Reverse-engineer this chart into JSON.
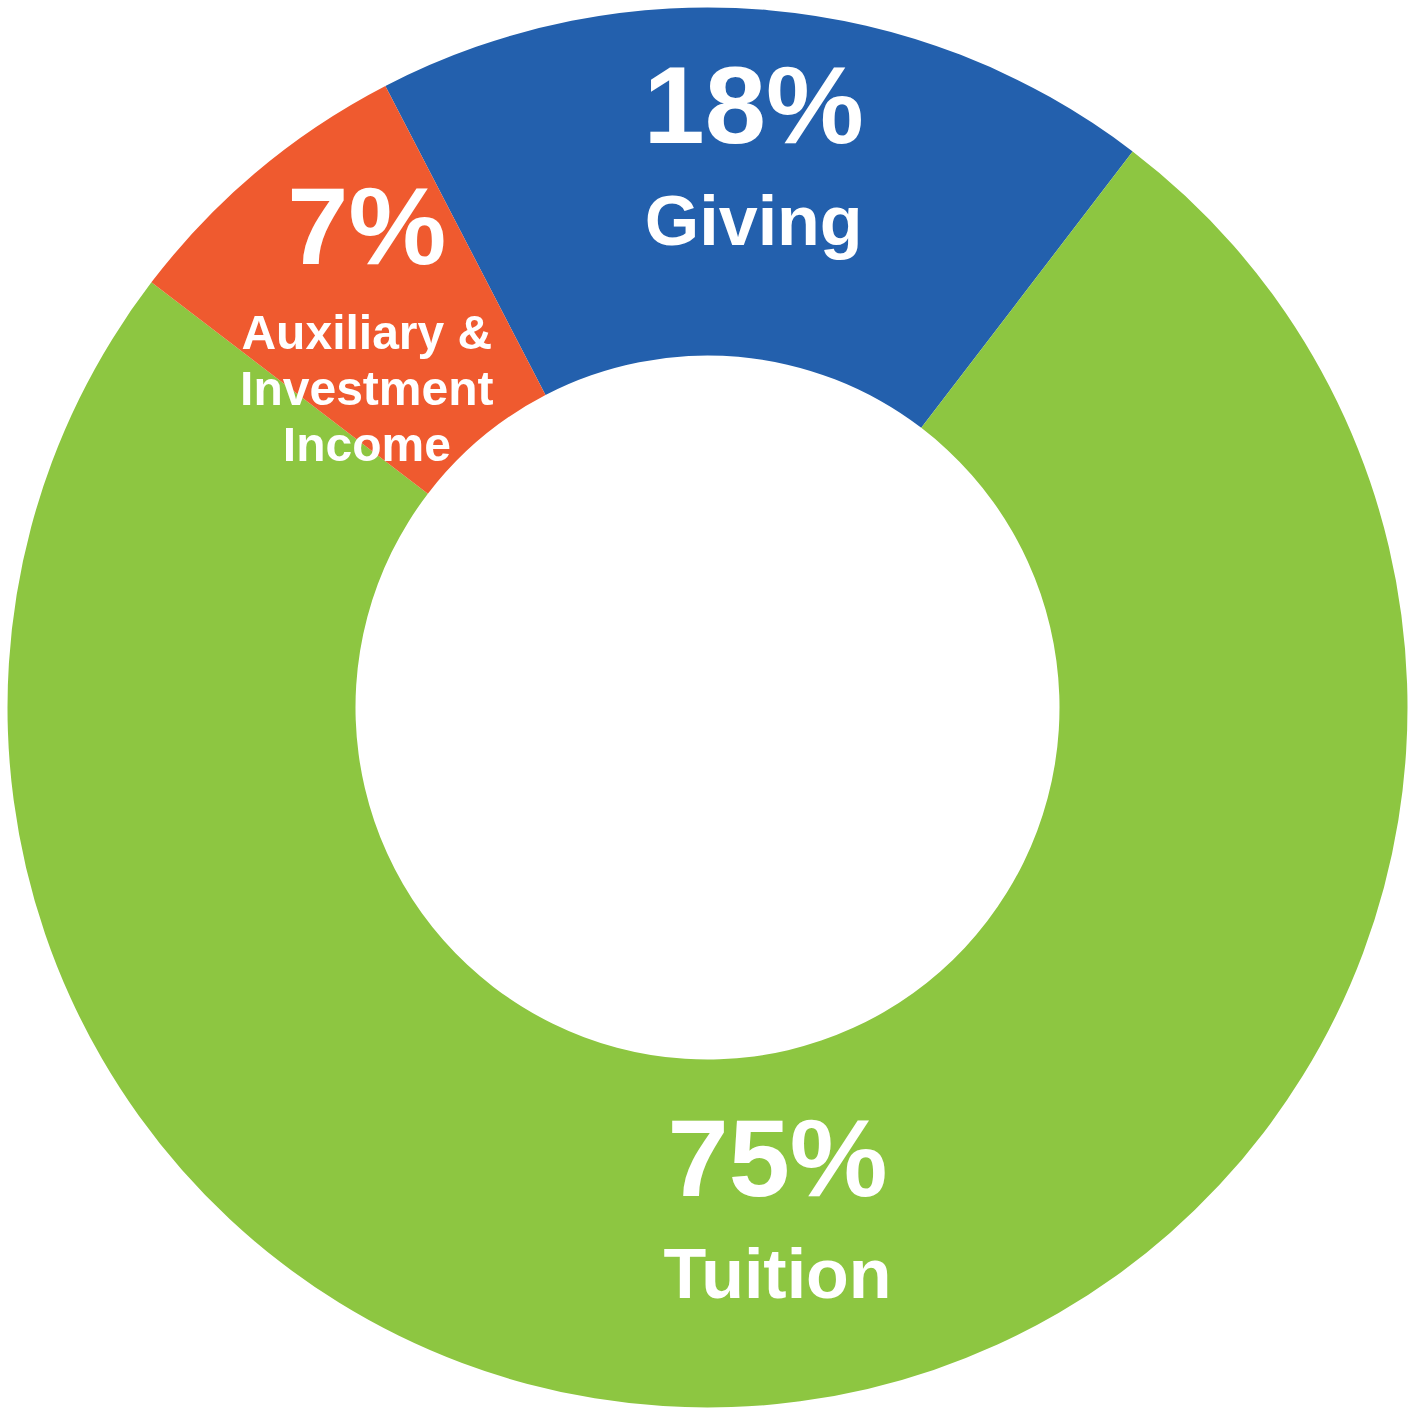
{
  "chart_data": {
    "type": "donut",
    "categories": [
      "Giving",
      "Tuition",
      "Auxiliary & Investment Income"
    ],
    "values": [
      18,
      75,
      7
    ],
    "colors": [
      "#2360ad",
      "#8dc641",
      "#ef5a2f"
    ],
    "value_labels": [
      "18%",
      "75%",
      "7%"
    ],
    "legend": false
  }
}
